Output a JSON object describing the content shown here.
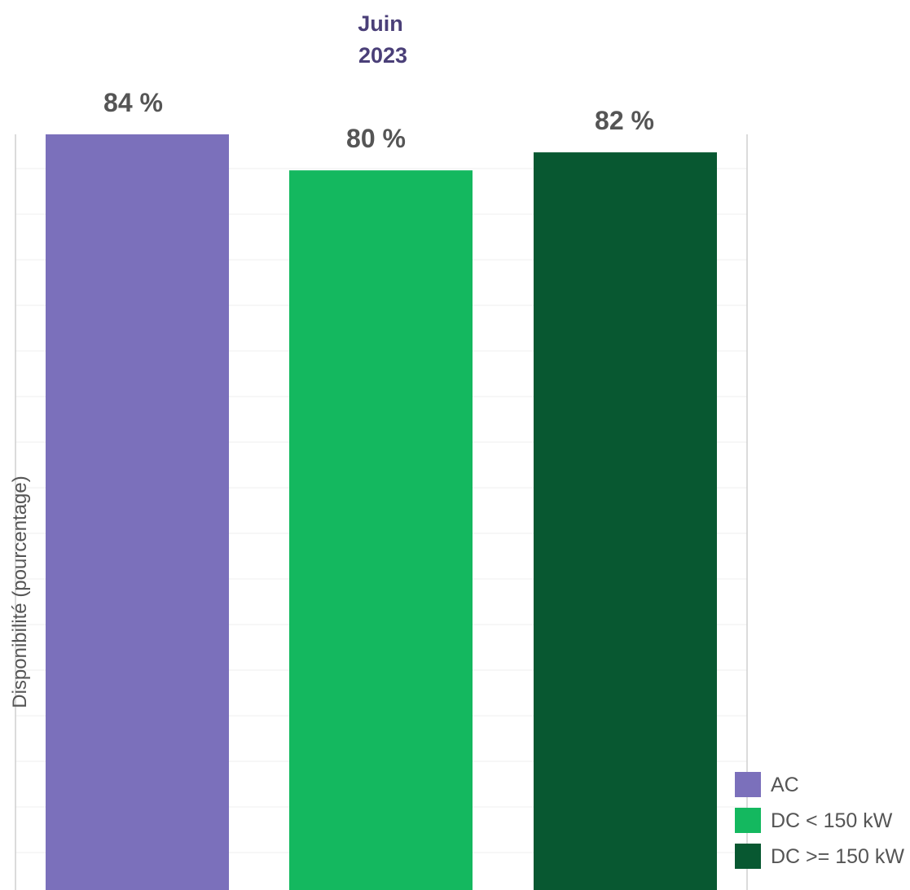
{
  "chart_data": {
    "type": "bar",
    "title_line1": "Juin",
    "title_line2": "2023",
    "ylabel": "Disponibilité (pourcentage)",
    "xlabel": "",
    "categories": [
      "AC",
      "DC < 150 kW",
      "DC >= 150 kW"
    ],
    "values": [
      84,
      80,
      82
    ],
    "value_labels": [
      "84 %",
      "80 %",
      "82 %"
    ],
    "colors": [
      "#7b70bb",
      "#14b85f",
      "#085831"
    ],
    "ylim": [
      0,
      84
    ],
    "grid": true,
    "legend": {
      "position": "bottom-right",
      "entries": [
        "AC",
        "DC < 150 kW",
        "DC >= 150 kW"
      ]
    }
  }
}
